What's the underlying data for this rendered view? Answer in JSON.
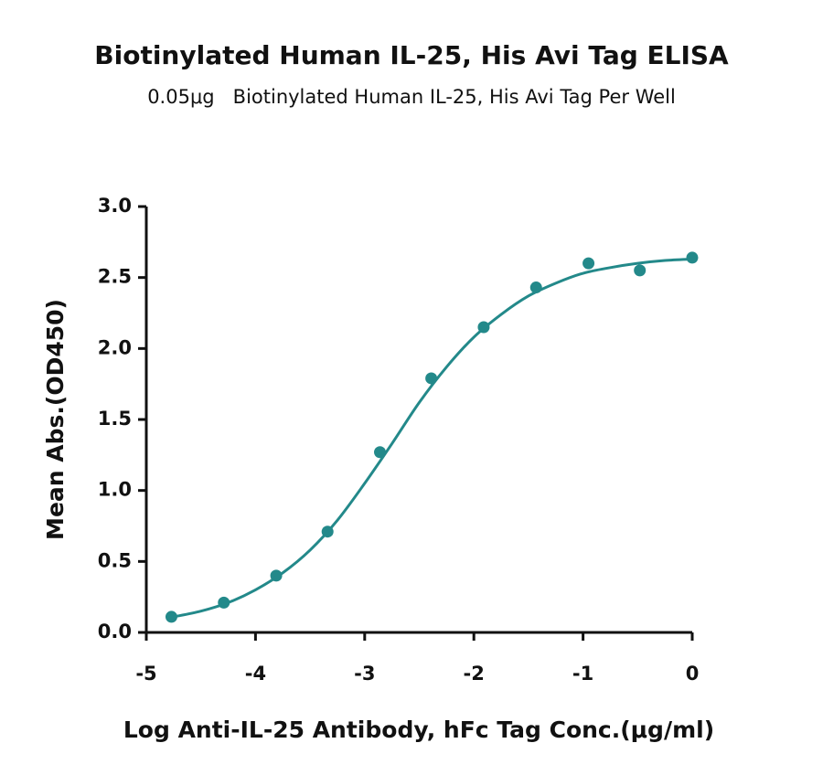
{
  "chart_data": {
    "type": "scatter",
    "title": "Biotinylated Human IL-25, His Avi Tag ELISA",
    "subtitle": "0.05μg   Biotinylated Human IL-25, His Avi Tag Per Well",
    "xlabel": "Log Anti-IL-25 Antibody, hFc Tag Conc.(μg/ml)",
    "ylabel": "Mean Abs.(OD450)",
    "xlim": [
      -5,
      0
    ],
    "xticks": [
      -5,
      -4,
      -3,
      -2,
      -1,
      0
    ],
    "ylim": [
      0,
      3
    ],
    "yticks": [
      {
        "value": 0,
        "label": "0.0"
      },
      0.5,
      {
        "value": 1,
        "label": "1.0"
      },
      1.5,
      {
        "value": 2,
        "label": "2.0"
      },
      2.5,
      {
        "value": 3,
        "label": "3.0"
      }
    ],
    "series": [
      {
        "type": "scatter",
        "color": "#23898a",
        "x": [
          -4.77,
          -4.29,
          -3.81,
          -3.34,
          -2.86,
          -2.39,
          -1.91,
          -1.43,
          -0.95,
          -0.48,
          0
        ],
        "values": [
          0.11,
          0.21,
          0.4,
          0.71,
          1.27,
          1.79,
          2.15,
          2.43,
          2.6,
          2.55,
          2.64
        ]
      },
      {
        "type": "line",
        "color": "#23898a",
        "x": [
          -4.75,
          -4.5,
          -4.25,
          -4,
          -3.75,
          -3.5,
          -3.25,
          -3,
          -2.75,
          -2.5,
          -2.25,
          -2,
          -1.75,
          -1.5,
          -1.25,
          -1,
          -0.75,
          -0.5,
          -0.25,
          0
        ],
        "values": [
          0.11,
          0.15,
          0.21,
          0.3,
          0.42,
          0.58,
          0.79,
          1.05,
          1.33,
          1.62,
          1.87,
          2.08,
          2.24,
          2.37,
          2.46,
          2.53,
          2.57,
          2.6,
          2.62,
          2.63
        ]
      }
    ]
  }
}
